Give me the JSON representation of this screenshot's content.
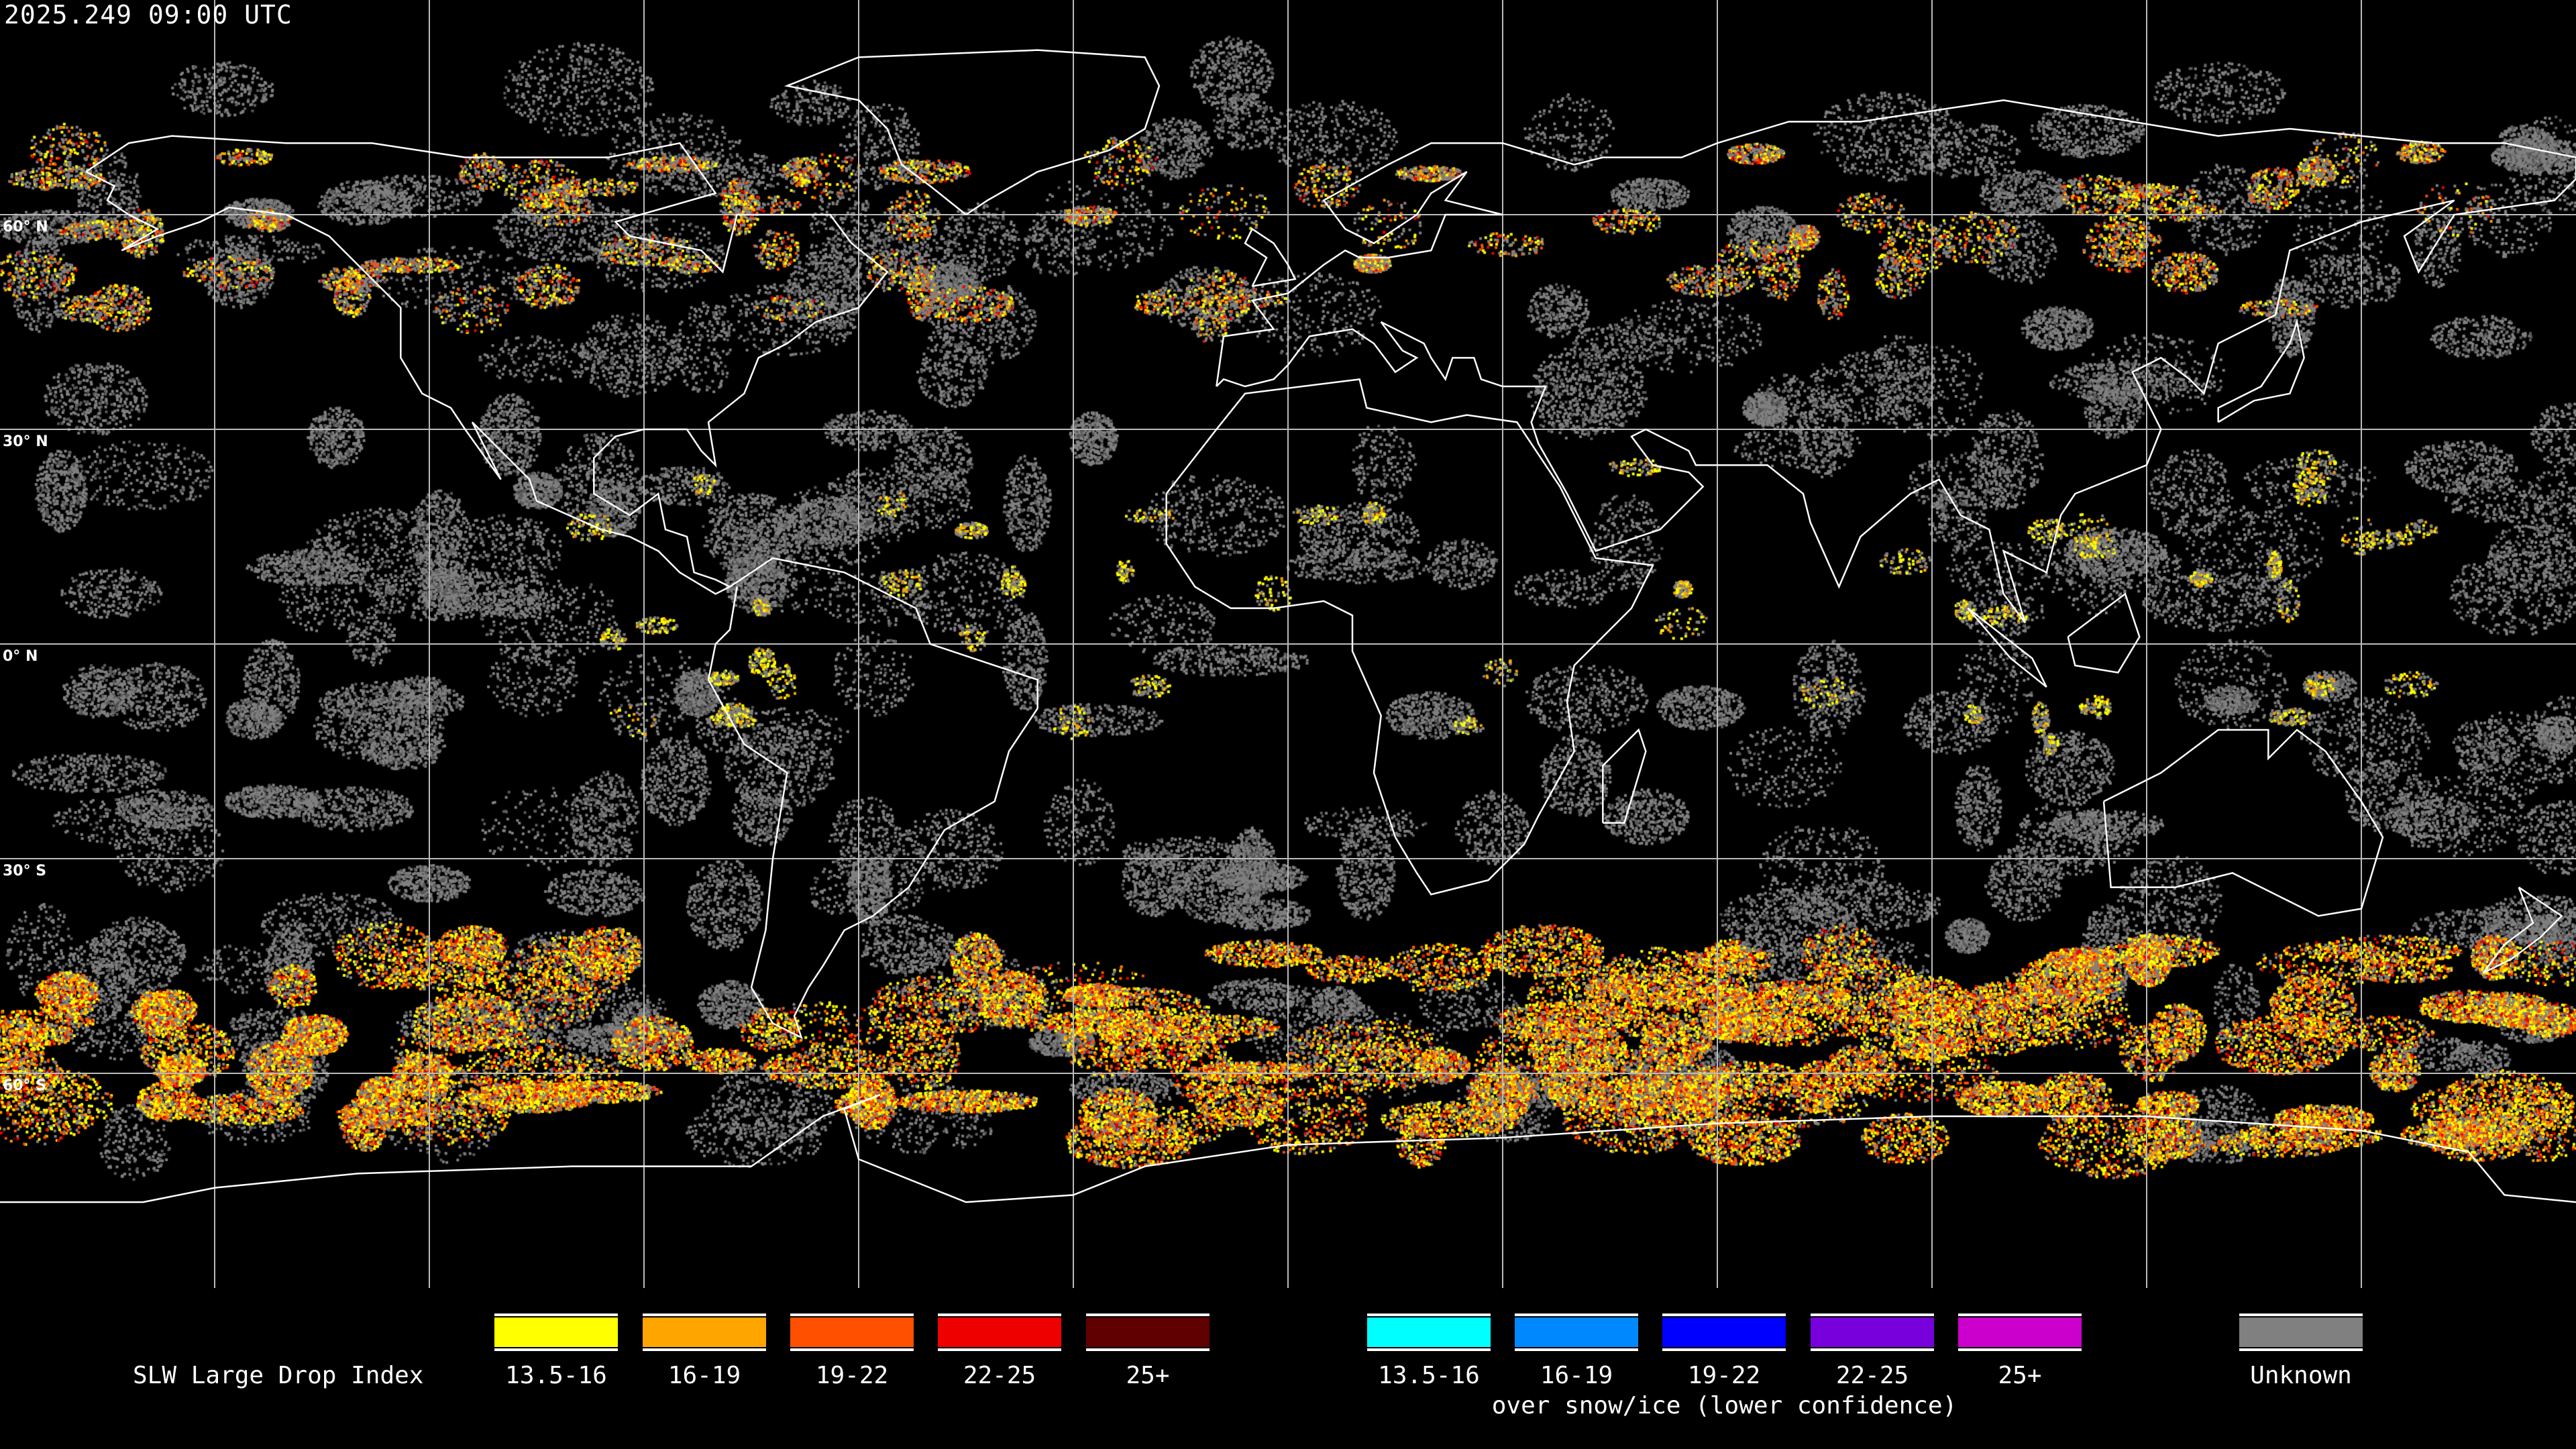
{
  "title": "2025.249 09:00 UTC",
  "map": {
    "latitude_labels": [
      {
        "lat": 60,
        "label": "60° N"
      },
      {
        "lat": 30,
        "label": "30° N"
      },
      {
        "lat": 0,
        "label": "0° N"
      },
      {
        "lat": -30,
        "label": "30° S"
      },
      {
        "lat": -60,
        "label": "60° S"
      }
    ],
    "graticule_step_deg": 30
  },
  "legend": {
    "title": "SLW Large Drop Index",
    "primary": [
      {
        "label": "13.5-16",
        "color": "#ffff00"
      },
      {
        "label": "16-19",
        "color": "#ffa500"
      },
      {
        "label": "19-22",
        "color": "#ff5000"
      },
      {
        "label": "22-25",
        "color": "#ee0000"
      },
      {
        "label": "25+",
        "color": "#600000"
      }
    ],
    "snow_ice": [
      {
        "label": "13.5-16",
        "color": "#00ffff"
      },
      {
        "label": "16-19",
        "color": "#0088ff"
      },
      {
        "label": "19-22",
        "color": "#0000ff"
      },
      {
        "label": "22-25",
        "color": "#7700dd"
      },
      {
        "label": "25+",
        "color": "#cc00cc"
      }
    ],
    "snow_ice_caption": "over snow/ice (lower confidence)",
    "unknown": {
      "label": "Unknown",
      "color": "#808080"
    }
  }
}
